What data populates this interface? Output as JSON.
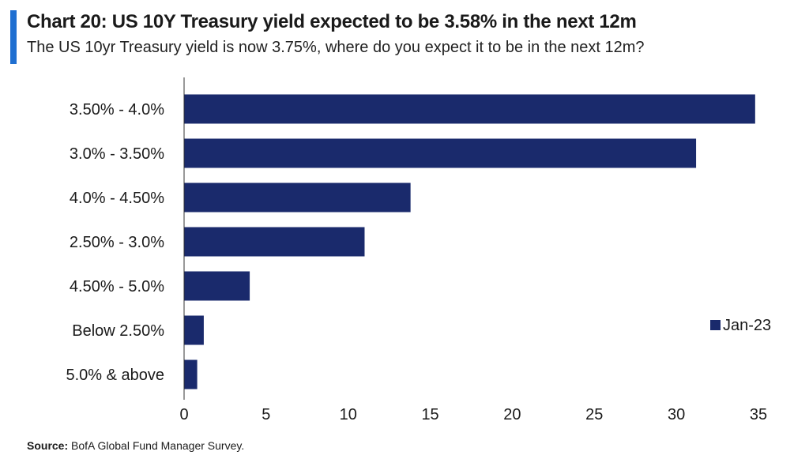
{
  "header": {
    "title": "Chart 20: US 10Y Treasury yield expected to be 3.58% in the next 12m",
    "subtitle": "The US 10yr Treasury yield is now 3.75%, where do you expect it to be in the next 12m?"
  },
  "footer": {
    "source_label": "Source:",
    "source_text": "BofA Global Fund Manager Survey."
  },
  "colors": {
    "accent": "#1f6fd1",
    "bar": "#1a2a6c"
  },
  "chart_data": {
    "type": "bar",
    "orientation": "horizontal",
    "categories": [
      "3.50% - 4.0%",
      "3.0% - 3.50%",
      "4.0% - 4.50%",
      "2.50% - 3.0%",
      "4.50% - 5.0%",
      "Below 2.50%",
      "5.0% & above"
    ],
    "series": [
      {
        "name": "Jan-23",
        "values": [
          34.8,
          31.2,
          13.8,
          11.0,
          4.0,
          1.2,
          0.8
        ]
      }
    ],
    "xlim": [
      0,
      35
    ],
    "xticks": [
      0,
      5,
      10,
      15,
      20,
      25,
      30,
      35
    ],
    "xlabel": "",
    "ylabel": "",
    "grid": false,
    "legend_position": "right"
  }
}
